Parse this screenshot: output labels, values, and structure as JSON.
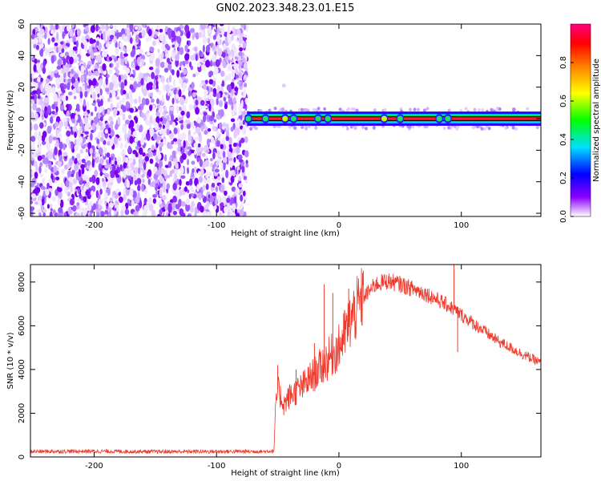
{
  "chart_data": [
    {
      "type": "heatmap",
      "title": "GN02.2023.348.23.01.E15",
      "xlabel": "Height of straight line (km)",
      "ylabel": "Frequency (Hz)",
      "xlim": [
        -252,
        165
      ],
      "ylim": [
        -62,
        60
      ],
      "xticks": [
        -200,
        -100,
        0,
        100
      ],
      "yticks": [
        -60,
        -40,
        -20,
        0,
        20,
        40,
        60
      ],
      "grid": false,
      "colorbar": {
        "label": "Normalized spectral amplitude",
        "range": [
          0.0,
          1.0
        ],
        "ticks": [
          0.0,
          0.2,
          0.4,
          0.6,
          0.8
        ]
      },
      "regions": [
        {
          "x_range": [
            -252,
            -75
          ],
          "y_range": [
            -62,
            60
          ],
          "amplitude_range": [
            0.0,
            0.2
          ]
        },
        {
          "x_range": [
            -75,
            165
          ],
          "y_range": [
            -1.5,
            1.5
          ],
          "amplitude_range": [
            0.3,
            1.0
          ]
        }
      ],
      "peaks": [
        {
          "x": -74,
          "y": 0,
          "amplitude": 0.3
        },
        {
          "x": -60,
          "y": 0,
          "amplitude": 0.4
        },
        {
          "x": -44,
          "y": 0,
          "amplitude": 0.5
        },
        {
          "x": -37,
          "y": 0,
          "amplitude": 0.4
        },
        {
          "x": -17,
          "y": 0,
          "amplitude": 0.4
        },
        {
          "x": -9,
          "y": 0,
          "amplitude": 0.35
        },
        {
          "x": 37,
          "y": 0,
          "amplitude": 0.5
        },
        {
          "x": 50,
          "y": 0,
          "amplitude": 0.3
        },
        {
          "x": 82,
          "y": 0,
          "amplitude": 0.4
        },
        {
          "x": 89,
          "y": 0,
          "amplitude": 0.35
        },
        {
          "x": -45,
          "y": 21,
          "amplitude": 0.05
        }
      ]
    },
    {
      "type": "line",
      "title": "",
      "xlabel": "Height of straight line (km)",
      "ylabel": "SNR (10 * v/v)",
      "xlim": [
        -252,
        165
      ],
      "ylim": [
        0,
        8800
      ],
      "xticks": [
        -200,
        -100,
        0,
        100
      ],
      "yticks": [
        0,
        2000,
        4000,
        6000,
        8000
      ],
      "grid": false,
      "color": "#ee3a2c",
      "x": [
        -252,
        -200,
        -150,
        -100,
        -60,
        -53,
        -52,
        -50,
        -45,
        -40,
        -30,
        -20,
        -10,
        0,
        10,
        20,
        30,
        40,
        50,
        60,
        70,
        80,
        90,
        100,
        110,
        120,
        130,
        140,
        150,
        165
      ],
      "y": [
        250,
        260,
        240,
        250,
        250,
        280,
        2000,
        3100,
        2400,
        2800,
        3200,
        3800,
        4400,
        5000,
        6300,
        7300,
        7900,
        8050,
        7900,
        7700,
        7500,
        7200,
        6900,
        6500,
        6100,
        5700,
        5300,
        5000,
        4700,
        4300
      ],
      "spikes": [
        {
          "x": -50,
          "y": 4200
        },
        {
          "x": -35,
          "y": 4000
        },
        {
          "x": -20,
          "y": 5200
        },
        {
          "x": -12,
          "y": 7900
        },
        {
          "x": -5,
          "y": 7500
        },
        {
          "x": 8,
          "y": 7700
        },
        {
          "x": 94,
          "y": 8800
        },
        {
          "x": 97,
          "y": 4800
        }
      ]
    }
  ]
}
